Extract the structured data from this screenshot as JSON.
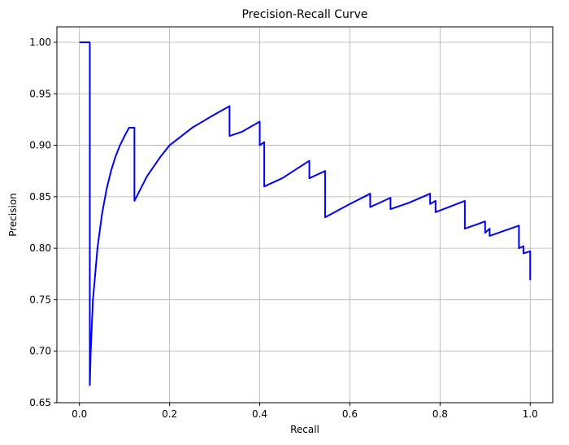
{
  "chart_data": {
    "type": "line",
    "title": "Precision-Recall Curve",
    "xlabel": "Recall",
    "ylabel": "Precision",
    "xlim": [
      -0.05,
      1.05
    ],
    "ylim": [
      0.65,
      1.015
    ],
    "xticks": [
      0.0,
      0.2,
      0.4,
      0.6,
      0.8,
      1.0
    ],
    "xtick_labels": [
      "0.0",
      "0.2",
      "0.4",
      "0.6",
      "0.8",
      "1.0"
    ],
    "yticks": [
      0.65,
      0.7,
      0.75,
      0.8,
      0.85,
      0.9,
      0.95,
      1.0
    ],
    "ytick_labels": [
      "0.65",
      "0.70",
      "0.75",
      "0.80",
      "0.85",
      "0.90",
      "0.95",
      "1.00"
    ],
    "grid": true,
    "series": [
      {
        "color": "#0000ff",
        "x": [
          0.0,
          0.023,
          0.023,
          0.025,
          0.03,
          0.035,
          0.04,
          0.05,
          0.06,
          0.07,
          0.08,
          0.09,
          0.1,
          0.11,
          0.122,
          0.122,
          0.15,
          0.18,
          0.2,
          0.25,
          0.3,
          0.333,
          0.333,
          0.36,
          0.4,
          0.4,
          0.41,
          0.41,
          0.45,
          0.51,
          0.51,
          0.545,
          0.545,
          0.6,
          0.645,
          0.645,
          0.69,
          0.69,
          0.73,
          0.778,
          0.778,
          0.79,
          0.79,
          0.855,
          0.855,
          0.9,
          0.9,
          0.91,
          0.91,
          0.975,
          0.975,
          0.985,
          0.985,
          1.0,
          1.0
        ],
        "y": [
          1.0,
          1.0,
          0.667,
          0.7,
          0.75,
          0.775,
          0.8,
          0.833,
          0.857,
          0.875,
          0.889,
          0.9,
          0.909,
          0.917,
          0.917,
          0.846,
          0.87,
          0.889,
          0.9,
          0.917,
          0.93,
          0.938,
          0.909,
          0.913,
          0.923,
          0.9,
          0.903,
          0.86,
          0.868,
          0.885,
          0.868,
          0.875,
          0.83,
          0.843,
          0.853,
          0.84,
          0.849,
          0.838,
          0.844,
          0.853,
          0.843,
          0.846,
          0.835,
          0.846,
          0.819,
          0.826,
          0.815,
          0.819,
          0.812,
          0.822,
          0.8,
          0.802,
          0.795,
          0.797,
          0.769
        ]
      }
    ]
  }
}
